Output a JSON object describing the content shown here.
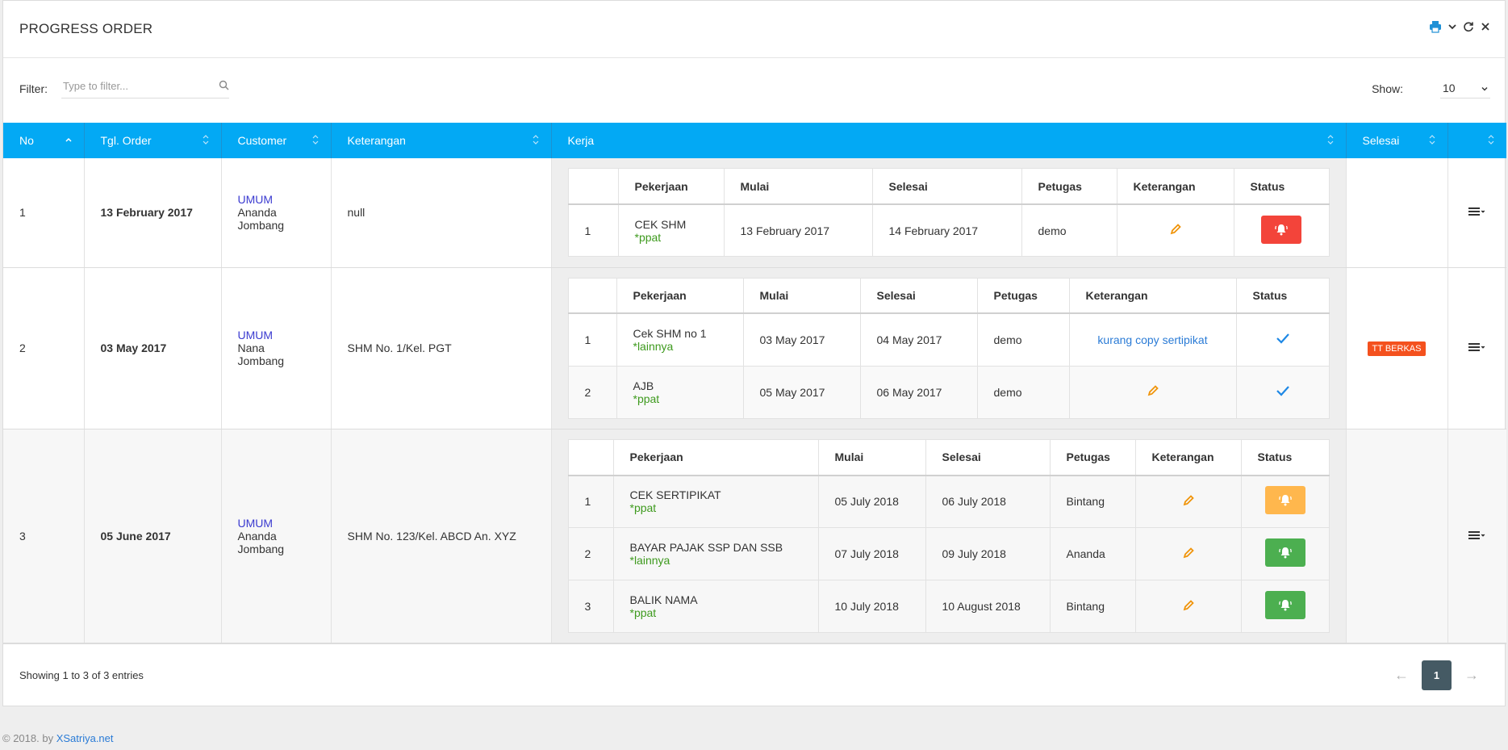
{
  "header": {
    "title": "PROGRESS ORDER"
  },
  "filter": {
    "label": "Filter:",
    "placeholder": "Type to filter...",
    "show_label": "Show:",
    "show_value": "10"
  },
  "columns": [
    "No",
    "Tgl. Order",
    "Customer",
    "Keterangan",
    "Kerja",
    "Selesai",
    ""
  ],
  "inner_columns": [
    "",
    "Pekerjaan",
    "Mulai",
    "Selesai",
    "Petugas",
    "Keterangan",
    "Status"
  ],
  "orders": [
    {
      "no": "1",
      "date": "13 February 2017",
      "customer_type": "UMUM",
      "customer_name": "Ananda",
      "customer_city": "Jombang",
      "keterangan": "null",
      "selesai": "",
      "jobs": [
        {
          "no": "1",
          "name": "CEK SHM",
          "tag": "*ppat",
          "mulai": "13 February 2017",
          "selesai": "14 February 2017",
          "petugas": "demo",
          "keterangan": "",
          "status": "red-bell"
        }
      ]
    },
    {
      "no": "2",
      "date": "03 May 2017",
      "customer_type": "UMUM",
      "customer_name": "Nana",
      "customer_city": "Jombang",
      "keterangan": "SHM No. 1/Kel. PGT",
      "selesai": "TT BERKAS",
      "jobs": [
        {
          "no": "1",
          "name": "Cek SHM no 1",
          "tag": "*lainnya",
          "mulai": "03 May 2017",
          "selesai": "04 May 2017",
          "petugas": "demo",
          "keterangan": "kurang copy sertipikat",
          "status": "check"
        },
        {
          "no": "2",
          "name": "AJB",
          "tag": "*ppat",
          "mulai": "05 May 2017",
          "selesai": "06 May 2017",
          "petugas": "demo",
          "keterangan": "",
          "status": "check"
        }
      ]
    },
    {
      "no": "3",
      "date": "05 June 2017",
      "customer_type": "UMUM",
      "customer_name": "Ananda",
      "customer_city": "Jombang",
      "keterangan": "SHM No. 123/Kel. ABCD An. XYZ",
      "selesai": "",
      "jobs": [
        {
          "no": "1",
          "name": "CEK SERTIPIKAT",
          "tag": "*ppat",
          "mulai": "05 July 2018",
          "selesai": "06 July 2018",
          "petugas": "Bintang",
          "keterangan": "",
          "status": "orange-bell"
        },
        {
          "no": "2",
          "name": "BAYAR PAJAK SSP DAN SSB",
          "tag": "*lainnya",
          "mulai": "07 July 2018",
          "selesai": "09 July 2018",
          "petugas": "Ananda",
          "keterangan": "",
          "status": "green-bell"
        },
        {
          "no": "3",
          "name": "BALIK NAMA",
          "tag": "*ppat",
          "mulai": "10 July 2018",
          "selesai": "10 August 2018",
          "petugas": "Bintang",
          "keterangan": "",
          "status": "green-bell"
        }
      ]
    }
  ],
  "footer": {
    "entries": "Showing 1 to 3 of 3 entries",
    "page": "1",
    "prev": "←",
    "next": "→"
  },
  "copyright": {
    "text": "© 2018. by ",
    "link": "XSatriya.net"
  },
  "colors": {
    "header_bg": "#03a9f4",
    "red": "#f3443a",
    "orange": "#ffb74d",
    "green": "#4caf50",
    "badge": "#f4511e"
  }
}
